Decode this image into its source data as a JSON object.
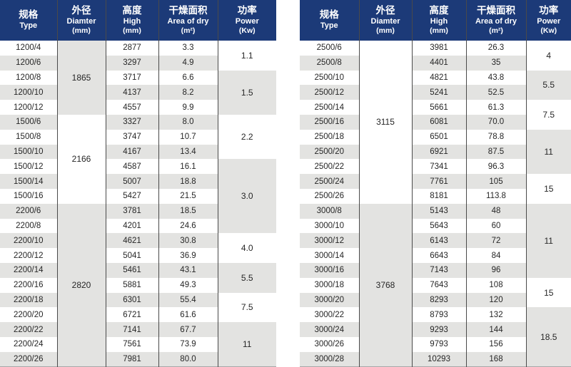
{
  "colors": {
    "header_bg": "#1c3a78",
    "header_text": "#ffffff",
    "stripe": "#e3e3e1",
    "grid_line": "#4a4a4a",
    "text": "#262626"
  },
  "header_columns": [
    {
      "zh": "规格",
      "en": "Type",
      "unit": ""
    },
    {
      "zh": "外径",
      "en": "Diamter",
      "unit": "(mm)"
    },
    {
      "zh": "高度",
      "en": "High",
      "unit": "(mm)"
    },
    {
      "zh": "干燥面积",
      "en": "Area of dry",
      "unit": "(m²)"
    },
    {
      "zh": "功率",
      "en": "Power",
      "unit": "(Kw)"
    }
  ],
  "tables": [
    {
      "name": "left",
      "rows": [
        {
          "type": "1200/4",
          "high": "2877",
          "area": "3.3"
        },
        {
          "type": "1200/6",
          "high": "3297",
          "area": "4.9"
        },
        {
          "type": "1200/8",
          "high": "3717",
          "area": "6.6"
        },
        {
          "type": "1200/10",
          "high": "4137",
          "area": "8.2"
        },
        {
          "type": "1200/12",
          "high": "4557",
          "area": "9.9"
        },
        {
          "type": "1500/6",
          "high": "3327",
          "area": "8.0"
        },
        {
          "type": "1500/8",
          "high": "3747",
          "area": "10.7"
        },
        {
          "type": "1500/10",
          "high": "4167",
          "area": "13.4"
        },
        {
          "type": "1500/12",
          "high": "4587",
          "area": "16.1"
        },
        {
          "type": "1500/14",
          "high": "5007",
          "area": "18.8"
        },
        {
          "type": "1500/16",
          "high": "5427",
          "area": "21.5"
        },
        {
          "type": "2200/6",
          "high": "3781",
          "area": "18.5"
        },
        {
          "type": "2200/8",
          "high": "4201",
          "area": "24.6"
        },
        {
          "type": "2200/10",
          "high": "4621",
          "area": "30.8"
        },
        {
          "type": "2200/12",
          "high": "5041",
          "area": "36.9"
        },
        {
          "type": "2200/14",
          "high": "5461",
          "area": "43.1"
        },
        {
          "type": "2200/16",
          "high": "5881",
          "area": "49.3"
        },
        {
          "type": "2200/18",
          "high": "6301",
          "area": "55.4"
        },
        {
          "type": "2200/20",
          "high": "6721",
          "area": "61.6"
        },
        {
          "type": "2200/22",
          "high": "7141",
          "area": "67.7"
        },
        {
          "type": "2200/24",
          "high": "7561",
          "area": "73.9"
        },
        {
          "type": "2200/26",
          "high": "7981",
          "area": "80.0"
        }
      ],
      "diameter_groups": [
        {
          "value": "1865",
          "span": 5,
          "shaded": true
        },
        {
          "value": "2166",
          "span": 6,
          "shaded": false
        },
        {
          "value": "2820",
          "span": 11,
          "shaded": true
        }
      ],
      "power_groups": [
        {
          "value": "1.1",
          "span": 2,
          "shaded": false
        },
        {
          "value": "1.5",
          "span": 3,
          "shaded": true
        },
        {
          "value": "2.2",
          "span": 3,
          "shaded": false
        },
        {
          "value": "3.0",
          "span": 5,
          "shaded": true
        },
        {
          "value": "4.0",
          "span": 2,
          "shaded": false
        },
        {
          "value": "5.5",
          "span": 2,
          "shaded": true
        },
        {
          "value": "7.5",
          "span": 2,
          "shaded": false
        },
        {
          "value": "11",
          "span": 3,
          "shaded": true
        }
      ]
    },
    {
      "name": "right",
      "rows": [
        {
          "type": "2500/6",
          "high": "3981",
          "area": "26.3"
        },
        {
          "type": "2500/8",
          "high": "4401",
          "area": "35"
        },
        {
          "type": "2500/10",
          "high": "4821",
          "area": "43.8"
        },
        {
          "type": "2500/12",
          "high": "5241",
          "area": "52.5"
        },
        {
          "type": "2500/14",
          "high": "5661",
          "area": "61.3"
        },
        {
          "type": "2500/16",
          "high": "6081",
          "area": "70.0"
        },
        {
          "type": "2500/18",
          "high": "6501",
          "area": "78.8"
        },
        {
          "type": "2500/20",
          "high": "6921",
          "area": "87.5"
        },
        {
          "type": "2500/22",
          "high": "7341",
          "area": "96.3"
        },
        {
          "type": "2500/24",
          "high": "7761",
          "area": "105"
        },
        {
          "type": "2500/26",
          "high": "8181",
          "area": "113.8"
        },
        {
          "type": "3000/8",
          "high": "5143",
          "area": "48"
        },
        {
          "type": "3000/10",
          "high": "5643",
          "area": "60"
        },
        {
          "type": "3000/12",
          "high": "6143",
          "area": "72"
        },
        {
          "type": "3000/14",
          "high": "6643",
          "area": "84"
        },
        {
          "type": "3000/16",
          "high": "7143",
          "area": "96"
        },
        {
          "type": "3000/18",
          "high": "7643",
          "area": "108"
        },
        {
          "type": "3000/20",
          "high": "8293",
          "area": "120"
        },
        {
          "type": "3000/22",
          "high": "8793",
          "area": "132"
        },
        {
          "type": "3000/24",
          "high": "9293",
          "area": "144"
        },
        {
          "type": "3000/26",
          "high": "9793",
          "area": "156"
        },
        {
          "type": "3000/28",
          "high": "10293",
          "area": "168"
        }
      ],
      "diameter_groups": [
        {
          "value": "3115",
          "span": 11,
          "shaded": false
        },
        {
          "value": "3768",
          "span": 11,
          "shaded": true
        }
      ],
      "power_groups": [
        {
          "value": "4",
          "span": 2,
          "shaded": false
        },
        {
          "value": "5.5",
          "span": 2,
          "shaded": true
        },
        {
          "value": "7.5",
          "span": 2,
          "shaded": false
        },
        {
          "value": "11",
          "span": 3,
          "shaded": true
        },
        {
          "value": "15",
          "span": 2,
          "shaded": false
        },
        {
          "value": "11",
          "span": 5,
          "shaded": true
        },
        {
          "value": "15",
          "span": 2,
          "shaded": false
        },
        {
          "value": "18.5",
          "span": 4,
          "shaded": true
        }
      ]
    }
  ]
}
